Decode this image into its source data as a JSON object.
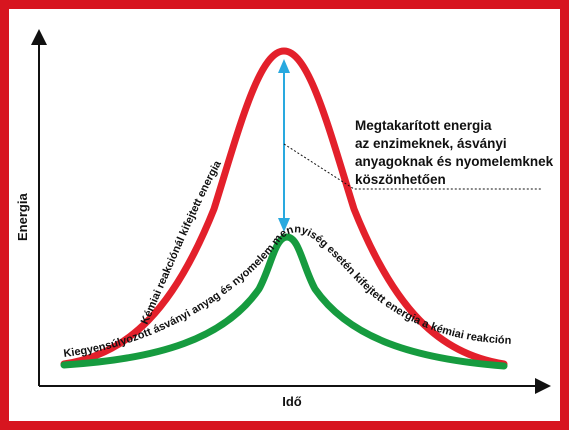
{
  "axes": {
    "x_label": "Idő",
    "y_label": "Energia"
  },
  "curves": {
    "uncatalyzed_label": "Kémiai reakciónál kifejtett energia",
    "catalyzed_label": "Kiegyensúlyozott ásványi anyag és nyomelem mennyiség esetén kifejtett energia a kémiai reakciónál"
  },
  "annotation": {
    "lines": [
      "Megtakarított energia",
      "az enzimeknek, ásványi",
      "anyagoknak és nyomelemknek",
      "köszönhetően"
    ]
  },
  "colors": {
    "frame": "#d7151f",
    "uncatalyzed_curve": "#e3202b",
    "catalyzed_curve": "#169b3f",
    "energy_arrow": "#29a9df",
    "axis": "#111111"
  }
}
